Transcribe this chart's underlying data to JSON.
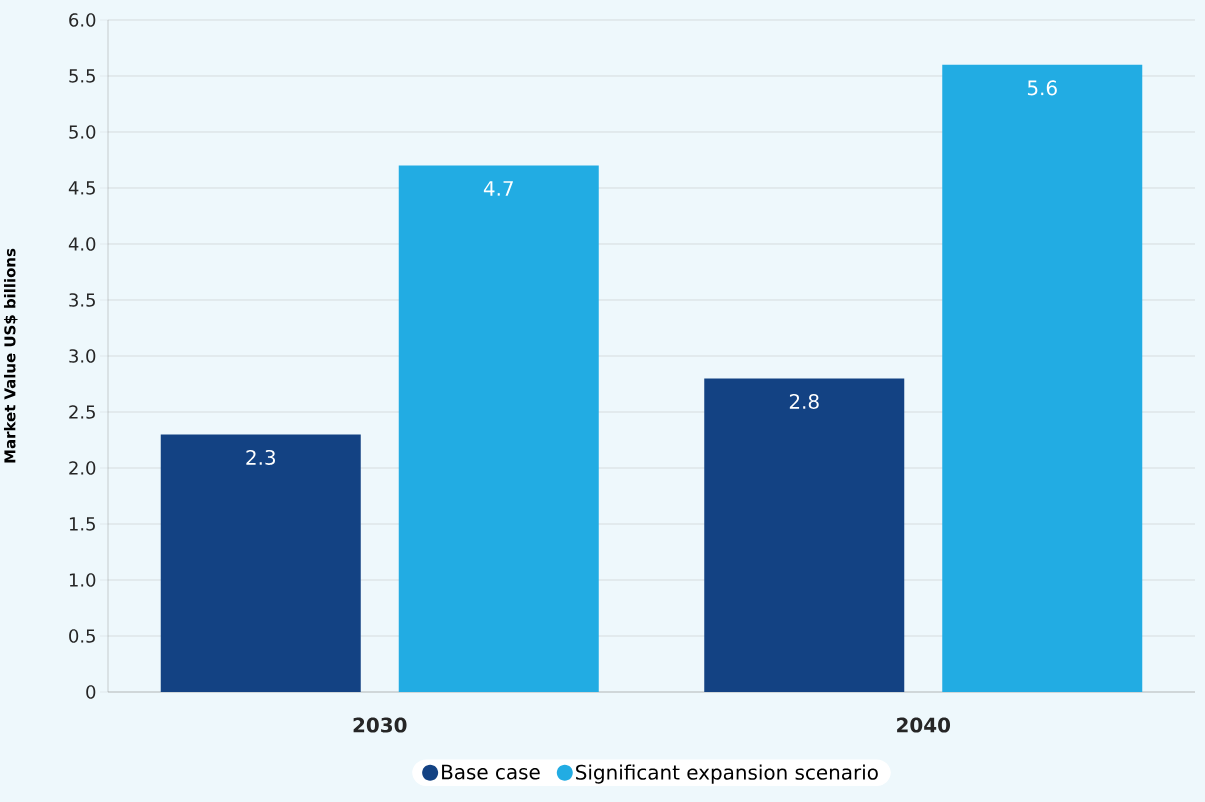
{
  "chart_data": {
    "type": "bar",
    "categories": [
      "2030",
      "2040"
    ],
    "series": [
      {
        "name": "Base case",
        "color": "#134283",
        "values": [
          2.3,
          2.8
        ]
      },
      {
        "name": "Significant expansion scenario",
        "color": "#22ace3",
        "values": [
          4.7,
          5.6
        ]
      }
    ],
    "ylabel": "Market Value US$ billions",
    "ylim": [
      0,
      6
    ],
    "yticks": [
      {
        "value": 0,
        "label": "0"
      },
      {
        "value": 0.5,
        "label": "0.5"
      },
      {
        "value": 1,
        "label": "1.0"
      },
      {
        "value": 1.5,
        "label": "1.5"
      },
      {
        "value": 2,
        "label": "2.0"
      },
      {
        "value": 2.5,
        "label": "2.5"
      },
      {
        "value": 3,
        "label": "3.0"
      },
      {
        "value": 3.5,
        "label": "3.5"
      },
      {
        "value": 4,
        "label": "4.0"
      },
      {
        "value": 4.5,
        "label": "4.5"
      },
      {
        "value": 5,
        "label": "5.0"
      },
      {
        "value": 5.5,
        "label": "5.5"
      },
      {
        "value": 6,
        "label": "6.0"
      }
    ],
    "grid": "y",
    "legend": "bottom",
    "data_labels": true
  }
}
